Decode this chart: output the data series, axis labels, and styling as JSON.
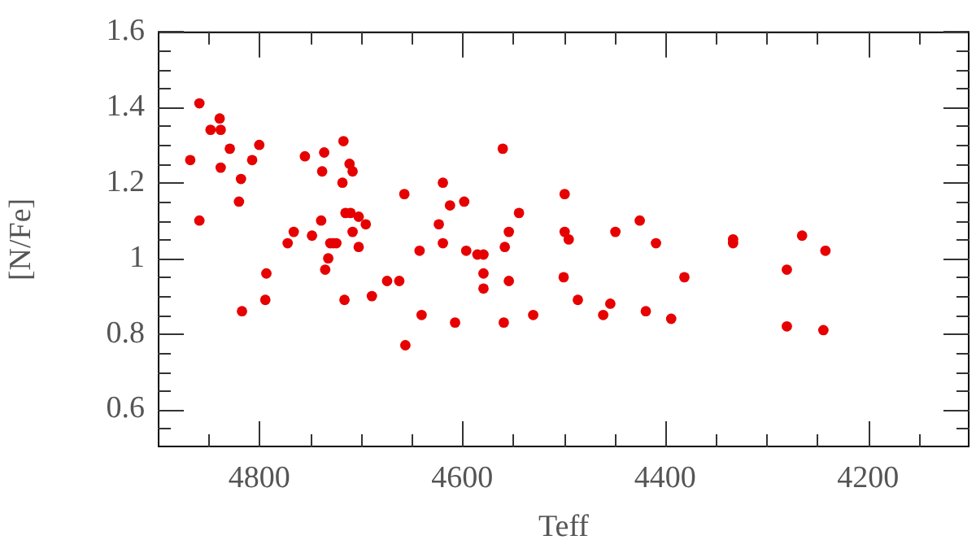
{
  "chart_data": {
    "type": "scatter",
    "xlabel": "Teff",
    "ylabel": "[N/Fe]",
    "xlim": [
      4900,
      4100
    ],
    "ylim": [
      0.5,
      1.6
    ],
    "xticks": [
      {
        "value": 4850,
        "label": null
      },
      4800,
      {
        "value": 4750,
        "label": null
      },
      {
        "value": 4700,
        "label": null
      },
      {
        "value": 4650,
        "label": null
      },
      4600,
      {
        "value": 4550,
        "label": null
      },
      {
        "value": 4500,
        "label": null
      },
      {
        "value": 4450,
        "label": null
      },
      4400,
      {
        "value": 4350,
        "label": null
      },
      {
        "value": 4300,
        "label": null
      },
      {
        "value": 4250,
        "label": null
      },
      4200,
      {
        "value": 4150,
        "label": null
      }
    ],
    "yticks": [
      {
        "value": 0.55,
        "label": null
      },
      0.6,
      {
        "value": 0.65,
        "label": null
      },
      {
        "value": 0.7,
        "label": null
      },
      {
        "value": 0.75,
        "label": null
      },
      0.8,
      {
        "value": 0.85,
        "label": null
      },
      {
        "value": 0.9,
        "label": null
      },
      {
        "value": 0.95,
        "label": null
      },
      1,
      {
        "value": 1.05,
        "label": null
      },
      {
        "value": 1.1,
        "label": null
      },
      {
        "value": 1.15,
        "label": null
      },
      1.2,
      {
        "value": 1.25,
        "label": null
      },
      {
        "value": 1.3,
        "label": null
      },
      {
        "value": 1.35,
        "label": null
      },
      1.4,
      {
        "value": 1.45,
        "label": null
      },
      {
        "value": 1.5,
        "label": null
      },
      {
        "value": 1.55,
        "label": null
      },
      1.6
    ],
    "marker": "circle",
    "grid": false,
    "legend": false,
    "series": [
      {
        "color": "#e60000",
        "x": [
          4868,
          4859,
          4859,
          4848,
          4839,
          4838,
          4838,
          4829,
          4818,
          4820,
          4807,
          4800,
          4793,
          4772,
          4766,
          4755,
          4748,
          4739,
          4738,
          4736,
          4735,
          4732,
          4730,
          4727,
          4724,
          4718,
          4717,
          4715,
          4711,
          4710,
          4708,
          4708,
          4702,
          4702,
          4695,
          4674,
          4662,
          4657,
          4642,
          4623,
          4619,
          4619,
          4612,
          4598,
          4596,
          4585,
          4579,
          4579,
          4579,
          4689,
          4817,
          4794,
          4716,
          4656,
          4640,
          4607,
          4560,
          4499,
          4544,
          4554,
          4558,
          4554,
          4499,
          4495,
          4500,
          4449,
          4425,
          4409,
          4381,
          4333,
          4333,
          4265,
          4242,
          4280,
          4486,
          4454,
          4461,
          4530,
          4559,
          4419,
          4394,
          4280,
          4244
        ],
        "values": [
          1.26,
          1.41,
          1.1,
          1.34,
          1.37,
          1.34,
          1.24,
          1.29,
          1.21,
          1.15,
          1.26,
          1.3,
          0.96,
          1.04,
          1.07,
          1.27,
          1.06,
          1.1,
          1.23,
          1.28,
          0.97,
          1.0,
          1.04,
          1.04,
          1.04,
          1.2,
          1.31,
          1.12,
          1.25,
          1.12,
          1.23,
          1.07,
          1.11,
          1.03,
          1.09,
          0.94,
          0.94,
          1.17,
          1.02,
          1.09,
          1.2,
          1.04,
          1.14,
          1.15,
          1.02,
          1.01,
          1.01,
          0.96,
          0.92,
          0.9,
          0.86,
          0.89,
          0.89,
          0.77,
          0.85,
          0.83,
          1.29,
          1.17,
          1.12,
          1.07,
          1.03,
          0.94,
          1.07,
          1.05,
          0.95,
          1.07,
          1.1,
          1.04,
          0.95,
          1.05,
          1.04,
          1.06,
          1.02,
          0.97,
          0.89,
          0.88,
          0.85,
          0.85,
          0.83,
          0.86,
          0.84,
          0.82,
          0.81
        ]
      }
    ]
  }
}
